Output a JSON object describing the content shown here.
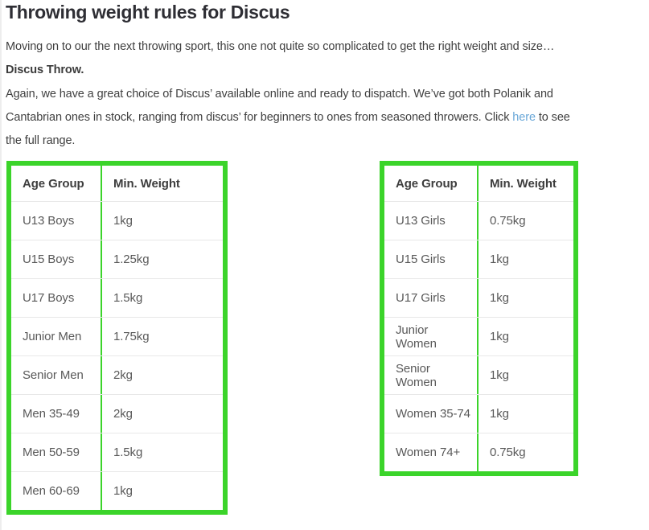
{
  "page": {
    "title": "Throwing weight rules for Discus",
    "paragraph1": {
      "text": "Moving on to our the next throwing sport, this one not quite so complicated to get the right weight and size…",
      "bold_text": "Discus Throw."
    },
    "paragraph2": {
      "before_link": "Again, we have a great choice of Discus’ available online and ready to dispatch. We’ve got both Polanik and Cantabrian ones in stock, ranging from discus’ for beginners to ones from seasoned throwers. Click ",
      "link_text": "here",
      "after_link": " to see the full range."
    }
  },
  "colors": {
    "accent_green": "#3bd42a",
    "link_blue": "#69a7d8",
    "heading_text": "#2e2e34",
    "body_text": "#404040",
    "table_text": "#595959",
    "row_divider": "#e8e8e8"
  },
  "tables": [
    {
      "name": "men-discus-weights",
      "headers": [
        "Age Group",
        "Min. Weight"
      ],
      "rows": [
        [
          "U13 Boys",
          "1kg"
        ],
        [
          "U15 Boys",
          "1.25kg"
        ],
        [
          "U17 Boys",
          "1.5kg"
        ],
        [
          "Junior Men",
          "1.75kg"
        ],
        [
          "Senior Men",
          "2kg"
        ],
        [
          "Men 35-49",
          "2kg"
        ],
        [
          "Men 50-59",
          "1.5kg"
        ],
        [
          "Men 60-69",
          "1kg"
        ]
      ]
    },
    {
      "name": "women-discus-weights",
      "headers": [
        "Age Group",
        "Min. Weight"
      ],
      "rows": [
        [
          "U13 Girls",
          "0.75kg"
        ],
        [
          "U15 Girls",
          "1kg"
        ],
        [
          "U17 Girls",
          "1kg"
        ],
        [
          "Junior Women",
          "1kg"
        ],
        [
          "Senior Women",
          "1kg"
        ],
        [
          "Women 35-74",
          "1kg"
        ],
        [
          "Women 74+",
          "0.75kg"
        ]
      ]
    }
  ]
}
